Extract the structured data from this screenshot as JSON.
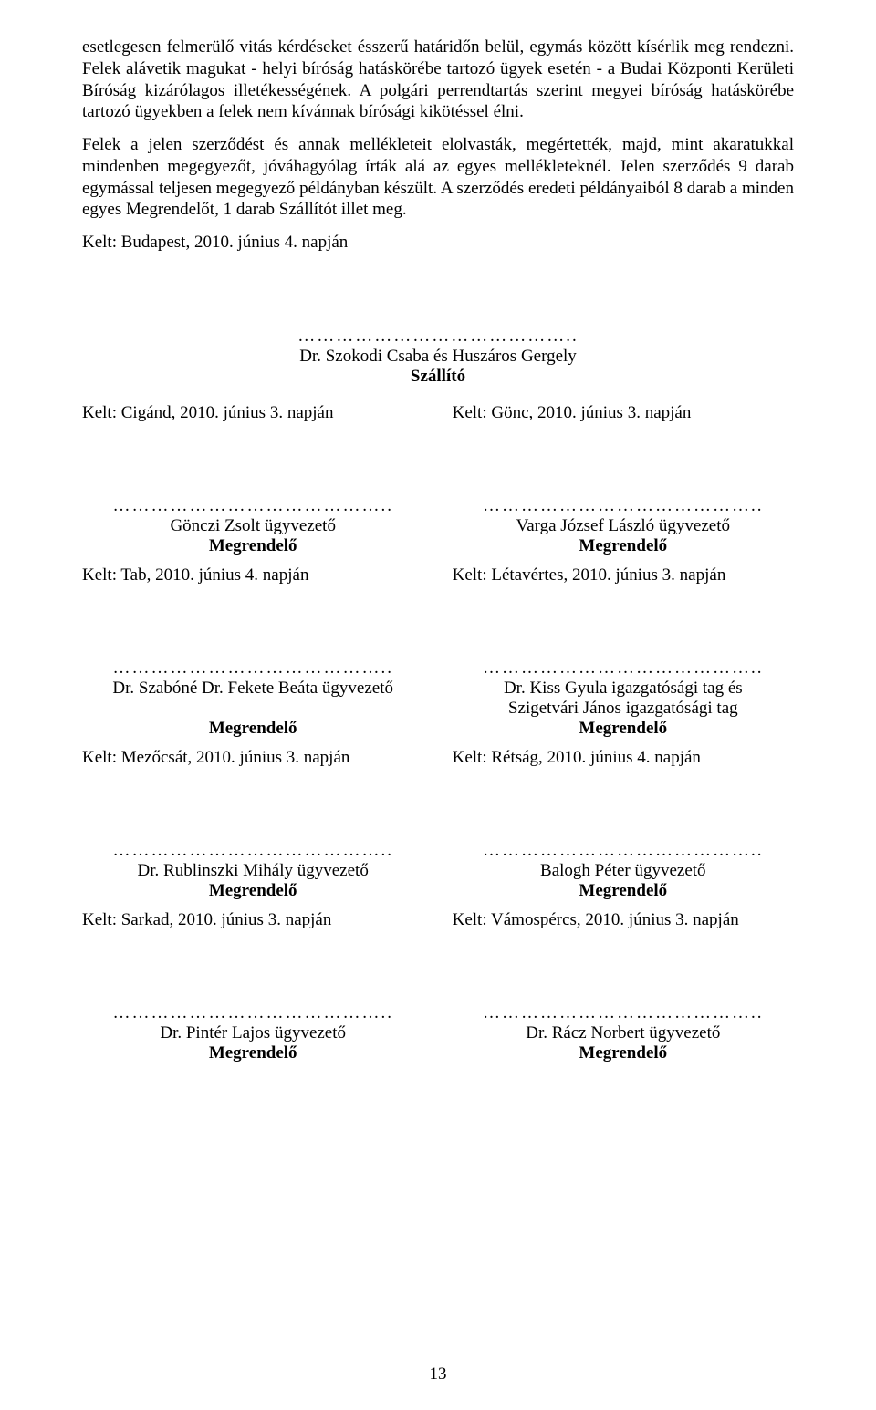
{
  "paragraphs": {
    "p1": "esetlegesen felmerülő vitás kérdéseket ésszerű határidőn belül, egymás között kísérlik meg rendezni. Felek alávetik magukat - helyi bíróság hatáskörébe tartozó ügyek esetén - a Budai Központi Kerületi Bíróság kizárólagos illetékességének. A polgári perrendtartás szerint megyei bíróság hatáskörébe tartozó ügyekben a felek nem kívánnak bírósági kikötéssel élni.",
    "p2": "Felek a jelen szerződést és annak mellékleteit elolvasták, megértették, majd, mint akaratukkal mindenben megegyezőt, jóváhagyólag írták alá az egyes mellékleteknél. Jelen szerződés 9 darab egymással teljesen megegyező példányban készült. A szerződés eredeti példányaiból 8 darab a minden egyes Megrendelőt, 1 darab Szállítót illet meg.",
    "kelt_main": "Kelt: Budapest, 2010. június 4. napján"
  },
  "center": {
    "dots": "……………………………………..",
    "name": "Dr. Szokodi Csaba és Huszáros Gergely",
    "role": "Szállító"
  },
  "rows": [
    {
      "left_kelt": "Kelt: Cigánd, 2010. június 3. napján",
      "right_kelt": "Kelt: Gönc, 2010. június 3. napján",
      "left_dots": "……………………………………..",
      "right_dots": "……………………………………..",
      "left_name": "Gönczi Zsolt ügyvezető",
      "right_name": "Varga József László ügyvezető",
      "left_role": "Megrendelő",
      "right_role": "Megrendelő",
      "left_kelt2": "Kelt: Tab, 2010. június 4. napján",
      "right_kelt2": "Kelt: Létavértes, 2010. június 3. napján"
    },
    {
      "left_dots": "……………………………………..",
      "right_dots": "……………………………………..",
      "left_name": "Dr. Szabóné Dr. Fekete Beáta ügyvezető",
      "right_name_line1": "Dr. Kiss Gyula igazgatósági tag és",
      "right_name_line2": "Szigetvári János igazgatósági tag",
      "left_role": "Megrendelő",
      "right_role": "Megrendelő",
      "left_kelt2": "Kelt: Mezőcsát, 2010. június 3. napján",
      "right_kelt2": "Kelt: Rétság, 2010. június 4. napján"
    },
    {
      "left_dots": "……………………………………..",
      "right_dots": "……………………………………..",
      "left_name": "Dr. Rublinszki Mihály ügyvezető",
      "right_name": "Balogh Péter ügyvezető",
      "left_role": "Megrendelő",
      "right_role": "Megrendelő",
      "left_kelt2": "Kelt: Sarkad, 2010. június 3. napján",
      "right_kelt2": "Kelt: Vámospércs, 2010. június 3. napján"
    },
    {
      "left_dots": "……………………………………..",
      "right_dots": "……………………………………..",
      "left_name": "Dr. Pintér Lajos ügyvezető",
      "right_name": "Dr. Rácz Norbert ügyvezető",
      "left_role": "Megrendelő",
      "right_role": "Megrendelő"
    }
  ],
  "page_number": "13"
}
